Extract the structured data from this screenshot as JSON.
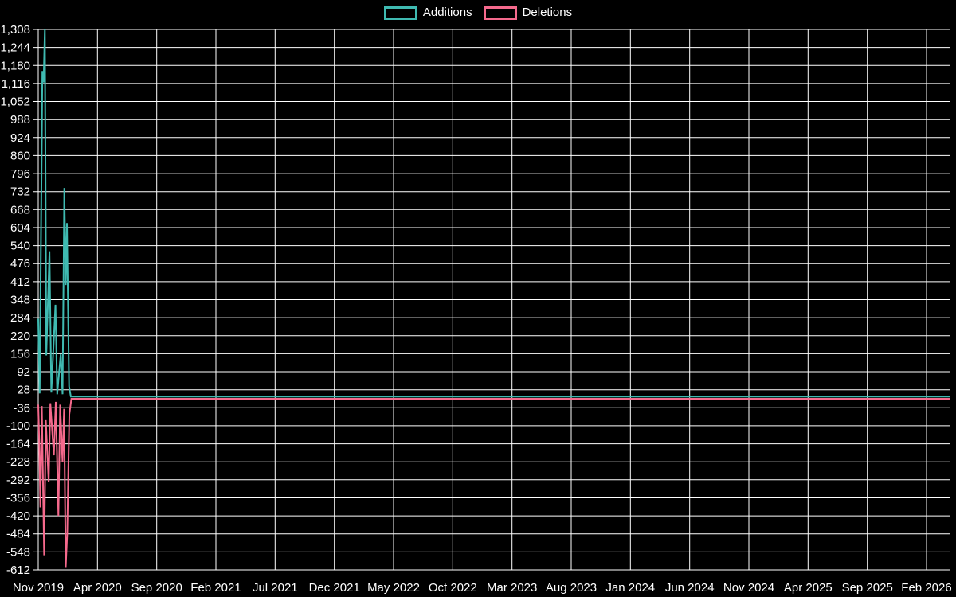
{
  "window": {
    "background": "#000000",
    "text_color": "#ffffff"
  },
  "chart_data": {
    "type": "line",
    "title": "",
    "legend_position": "top-center",
    "grid": true,
    "grid_color": "#ffffff",
    "background": "#000000",
    "text_color": "#ffffff",
    "x_axis": {
      "unit": "months since Nov 2019",
      "months_per_label": 5,
      "labels": [
        "Nov 2019",
        "Apr 2020",
        "Sep 2020",
        "Feb 2021",
        "Jul 2021",
        "Dec 2021",
        "May 2022",
        "Oct 2022",
        "Mar 2023",
        "Aug 2023",
        "Jan 2024",
        "Jun 2024",
        "Nov 2024",
        "Apr 2025",
        "Sep 2025",
        "Feb 2026"
      ]
    },
    "y_axis": {
      "min": -612,
      "max": 1308,
      "tick_step": 64,
      "ticks": [
        1308,
        1244,
        1180,
        1116,
        1052,
        988,
        924,
        860,
        796,
        732,
        668,
        604,
        540,
        476,
        412,
        348,
        284,
        220,
        156,
        92,
        28,
        -36,
        -100,
        -164,
        -228,
        -292,
        -356,
        -420,
        -484,
        -548,
        -612
      ]
    },
    "series": [
      {
        "name": "Additions",
        "color": "#3fbab1",
        "points": [
          [
            0,
            280
          ],
          [
            0.12,
            15
          ],
          [
            0.35,
            1160
          ],
          [
            0.45,
            1120
          ],
          [
            0.56,
            1308
          ],
          [
            0.68,
            150
          ],
          [
            0.95,
            520
          ],
          [
            1.1,
            18
          ],
          [
            1.45,
            330
          ],
          [
            1.6,
            12
          ],
          [
            1.9,
            155
          ],
          [
            2.05,
            12
          ],
          [
            2.2,
            745
          ],
          [
            2.32,
            400
          ],
          [
            2.42,
            620
          ],
          [
            2.6,
            40
          ],
          [
            2.75,
            4
          ],
          [
            77,
            4
          ]
        ]
      },
      {
        "name": "Deletions",
        "color": "#f5698c",
        "points": [
          [
            0,
            -25
          ],
          [
            0.08,
            -150
          ],
          [
            0.18,
            -390
          ],
          [
            0.3,
            -30
          ],
          [
            0.5,
            -560
          ],
          [
            0.64,
            -80
          ],
          [
            0.88,
            -300
          ],
          [
            1.02,
            -20
          ],
          [
            1.32,
            -205
          ],
          [
            1.48,
            -15
          ],
          [
            1.7,
            -420
          ],
          [
            1.85,
            -25
          ],
          [
            2.05,
            -230
          ],
          [
            2.18,
            -40
          ],
          [
            2.32,
            -602
          ],
          [
            2.45,
            -480
          ],
          [
            2.62,
            -60
          ],
          [
            2.8,
            -4
          ],
          [
            77,
            -4
          ]
        ]
      }
    ]
  }
}
